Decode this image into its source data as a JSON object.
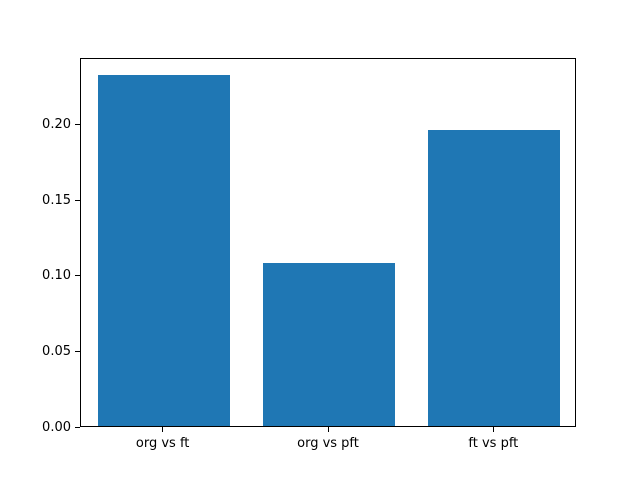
{
  "chart_data": {
    "type": "bar",
    "categories": [
      "org vs ft",
      "org vs pft",
      "ft vs pft"
    ],
    "values": [
      0.232,
      0.108,
      0.196
    ],
    "title": "",
    "xlabel": "",
    "ylabel": "",
    "ylim": [
      0,
      0.244
    ],
    "xlim": [
      -0.5,
      2.5
    ],
    "yticks": [
      0.0,
      0.05,
      0.1,
      0.15,
      0.2
    ],
    "ytick_labels": [
      "0.00",
      "0.05",
      "0.10",
      "0.15",
      "0.20"
    ],
    "bar_width_units": 0.8,
    "bar_color": "#1f77b4",
    "axis_color": "#000000",
    "background_color": "#ffffff",
    "grid": false,
    "legend": null
  }
}
